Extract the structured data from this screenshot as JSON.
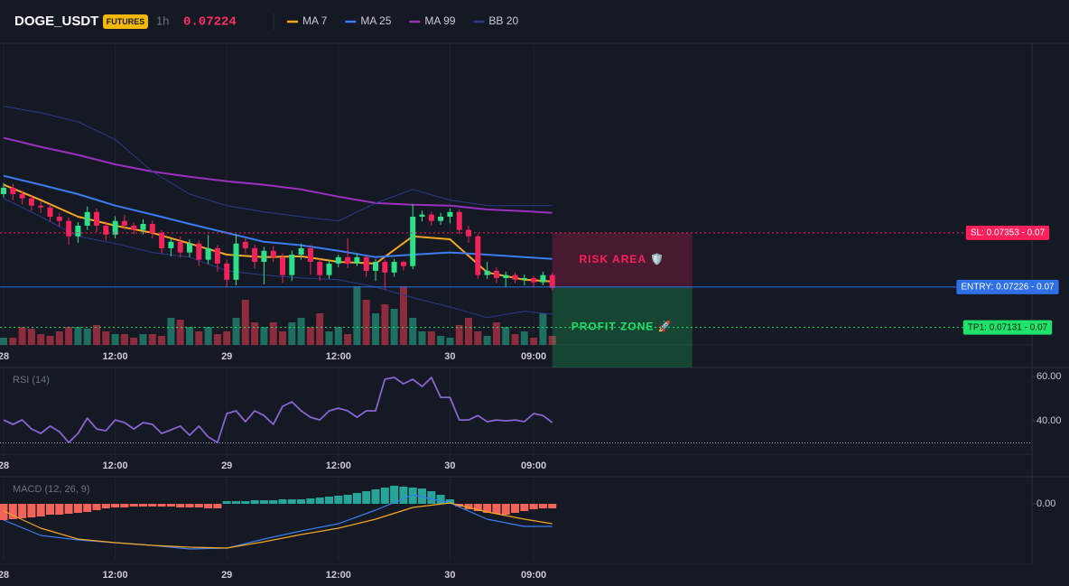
{
  "chart_data": [
    {
      "type": "candlestick",
      "symbol": "DOGE_USDT",
      "badge": "FUTURES",
      "interval": "1h",
      "price": 0.07224,
      "price_color": "#ff2e63",
      "categories": [
        "28",
        null,
        null,
        null,
        null,
        null,
        null,
        null,
        null,
        null,
        null,
        null,
        "12:00",
        null,
        null,
        null,
        null,
        null,
        null,
        null,
        null,
        null,
        null,
        null,
        "29",
        null,
        null,
        null,
        null,
        null,
        null,
        null,
        null,
        null,
        null,
        null,
        "12:00",
        null,
        null,
        null,
        null,
        null,
        null,
        null,
        null,
        null,
        null,
        null,
        "30",
        null,
        null,
        null,
        null,
        null,
        null,
        null,
        null,
        "09:00",
        null,
        null
      ],
      "open": [
        0.07444,
        0.07459,
        0.07444,
        0.07434,
        0.07417,
        0.07413,
        0.07391,
        0.07381,
        0.07345,
        0.0737,
        0.07402,
        0.0737,
        0.07349,
        0.07381,
        0.0737,
        0.0736,
        0.07374,
        0.07353,
        0.07317,
        0.07332,
        0.07307,
        0.07328,
        0.0729,
        0.07317,
        0.07281,
        0.07243,
        0.07332,
        0.07317,
        0.07285,
        0.07311,
        0.07296,
        0.07254,
        0.07302,
        0.07317,
        0.07285,
        0.07254,
        0.07281,
        0.07296,
        0.07281,
        0.07296,
        0.07264,
        0.07285,
        0.0726,
        0.07285,
        0.07275,
        0.07391,
        0.07396,
        0.07381,
        0.07391,
        0.07402,
        0.0736,
        0.07345,
        0.07254,
        0.07264,
        0.07247,
        0.07254,
        0.07243,
        0.07247,
        0.07237,
        0.07254
      ],
      "high": [
        0.0747,
        0.07468,
        0.07452,
        0.0744,
        0.07428,
        0.0742,
        0.074,
        0.0739,
        0.07378,
        0.07415,
        0.0741,
        0.0738,
        0.07392,
        0.07395,
        0.07378,
        0.07385,
        0.07382,
        0.0736,
        0.0734,
        0.07345,
        0.07338,
        0.07335,
        0.07348,
        0.07325,
        0.0729,
        0.0735,
        0.0734,
        0.07325,
        0.0732,
        0.07322,
        0.07305,
        0.07312,
        0.07328,
        0.07325,
        0.07292,
        0.0729,
        0.07302,
        0.0734,
        0.07305,
        0.073,
        0.07292,
        0.0729,
        0.07292,
        0.07288,
        0.0742,
        0.07405,
        0.07402,
        0.074,
        0.0741,
        0.07408,
        0.0737,
        0.0735,
        0.07285,
        0.07272,
        0.07262,
        0.0726,
        0.07255,
        0.07252,
        0.07262,
        0.0726
      ],
      "low": [
        0.07436,
        0.0743,
        0.0742,
        0.07405,
        0.074,
        0.0738,
        0.07368,
        0.07325,
        0.0733,
        0.0736,
        0.07355,
        0.07335,
        0.0734,
        0.0736,
        0.0735,
        0.0735,
        0.0734,
        0.07305,
        0.07298,
        0.07295,
        0.07296,
        0.07275,
        0.0728,
        0.07262,
        0.07225,
        0.0723,
        0.07305,
        0.0727,
        0.07232,
        0.07285,
        0.07235,
        0.0724,
        0.0729,
        0.07255,
        0.0724,
        0.07245,
        0.07272,
        0.0727,
        0.07275,
        0.0725,
        0.0724,
        0.0722,
        0.0725,
        0.07265,
        0.07268,
        0.0738,
        0.0737,
        0.07372,
        0.07375,
        0.0735,
        0.0733,
        0.07245,
        0.07245,
        0.07235,
        0.07225,
        0.07235,
        0.0723,
        0.07225,
        0.0723,
        0.07218
      ],
      "close": [
        0.07459,
        0.07444,
        0.07434,
        0.07417,
        0.07413,
        0.07391,
        0.07381,
        0.07345,
        0.0737,
        0.07402,
        0.0737,
        0.07349,
        0.07381,
        0.0737,
        0.0736,
        0.07374,
        0.07353,
        0.07317,
        0.07332,
        0.07307,
        0.07328,
        0.0729,
        0.07317,
        0.07281,
        0.07243,
        0.07328,
        0.07317,
        0.07285,
        0.07311,
        0.07296,
        0.07254,
        0.07302,
        0.07317,
        0.07285,
        0.07254,
        0.07281,
        0.07296,
        0.07281,
        0.07296,
        0.07264,
        0.07285,
        0.0726,
        0.07285,
        0.07275,
        0.07391,
        0.07396,
        0.07381,
        0.07391,
        0.07402,
        0.0736,
        0.07345,
        0.07254,
        0.07264,
        0.07247,
        0.07254,
        0.07243,
        0.07247,
        0.07237,
        0.07254,
        0.07224
      ],
      "up_color": "#2ee08a",
      "down_color": "#f0245a",
      "volume": [
        8,
        8,
        20,
        18,
        12,
        10,
        15,
        20,
        20,
        18,
        22,
        15,
        12,
        12,
        8,
        12,
        12,
        10,
        30,
        28,
        20,
        15,
        20,
        12,
        15,
        30,
        50,
        25,
        20,
        25,
        15,
        25,
        30,
        20,
        35,
        15,
        20,
        12,
        65,
        50,
        35,
        45,
        40,
        65,
        30,
        15,
        15,
        10,
        8,
        22,
        30,
        15,
        10,
        25,
        20,
        12,
        15,
        8,
        35,
        10
      ],
      "volume_up_color": "#1e6f60",
      "volume_down_color": "#8c2c3d",
      "volume_lim": [
        0,
        70
      ],
      "ylim": [
        0.0709,
        0.07798
      ],
      "overlays": [
        {
          "name": "MA 7",
          "color": "#f5a623",
          "x": [
            0,
            4,
            8,
            12,
            16,
            20,
            24,
            28,
            32,
            36,
            40,
            44,
            48,
            52,
            56,
            59
          ],
          "values": [
            0.07466,
            0.0743,
            0.07391,
            0.0737,
            0.07353,
            0.07328,
            0.07302,
            0.07296,
            0.07298,
            0.07285,
            0.07281,
            0.07345,
            0.07338,
            0.0726,
            0.07243,
            0.07239
          ]
        },
        {
          "name": "MA 25",
          "color": "#3b7cf0",
          "x": [
            0,
            4,
            8,
            12,
            16,
            20,
            24,
            28,
            32,
            36,
            40,
            44,
            48,
            52,
            56,
            59
          ],
          "values": [
            0.07487,
            0.07466,
            0.07444,
            0.07417,
            0.07396,
            0.07374,
            0.07353,
            0.07332,
            0.07324,
            0.07311,
            0.07296,
            0.07302,
            0.07307,
            0.07302,
            0.07296,
            0.07292
          ]
        },
        {
          "name": "MA 99",
          "color": "#9b30c0",
          "x": [
            0,
            4,
            8,
            12,
            16,
            20,
            24,
            28,
            32,
            36,
            40,
            44,
            48,
            52,
            56,
            59
          ],
          "values": [
            0.07576,
            0.07555,
            0.07536,
            0.07514,
            0.07497,
            0.07485,
            0.07474,
            0.07466,
            0.07455,
            0.07438,
            0.07423,
            0.07419,
            0.07417,
            0.07408,
            0.07404,
            0.074
          ]
        },
        {
          "name": "BB 20",
          "color": "#2a3a8c",
          "x": [
            0,
            4,
            8,
            12,
            16,
            20,
            24,
            28,
            32,
            36,
            40,
            44,
            48,
            52,
            56,
            59
          ],
          "upper": [
            0.0765,
            0.07635,
            0.07614,
            0.07572,
            0.07497,
            0.07444,
            0.07417,
            0.07402,
            0.07391,
            0.07381,
            0.07423,
            0.07455,
            0.0743,
            0.07417,
            0.07417,
            0.07417
          ],
          "lower": [
            0.07434,
            0.07391,
            0.07345,
            0.07328,
            0.07307,
            0.07296,
            0.07264,
            0.07254,
            0.07247,
            0.07243,
            0.07226,
            0.07201,
            0.07179,
            0.07154,
            0.07169,
            0.07162
          ]
        }
      ],
      "levels": [
        {
          "label": "SL: 0.07353 - 0.07",
          "value": 0.07353,
          "color": "#ff1f5a",
          "text_color": "#ffffff",
          "style": "dotted"
        },
        {
          "label": "ENTRY: 0.07226 - 0.07",
          "value": 0.07226,
          "color": "#2f6fe8",
          "text_color": "#ffffff",
          "style": "solid"
        },
        {
          "label": "TP1: 0.07131 - 0.07",
          "value": 0.07131,
          "color": "#1ee36b",
          "text_color": "#0b1a12",
          "style": "dotted"
        }
      ],
      "zones": [
        {
          "label": "RISK AREA 🛡️",
          "from": 0.07353,
          "to": 0.07226,
          "color": "#ff1f5a"
        },
        {
          "label": "PROFIT ZONE 🚀",
          "from": 0.07226,
          "to": 0.07037,
          "color": "#1ee36b"
        }
      ]
    },
    {
      "type": "line",
      "title": "RSI (14)",
      "color": "#8a63d2",
      "categories": [
        "28",
        null,
        null,
        null,
        null,
        null,
        null,
        null,
        null,
        null,
        null,
        null,
        "12:00",
        null,
        null,
        null,
        null,
        null,
        null,
        null,
        null,
        null,
        null,
        null,
        "29",
        null,
        null,
        null,
        null,
        null,
        null,
        null,
        null,
        null,
        null,
        null,
        "12:00",
        null,
        null,
        null,
        null,
        null,
        null,
        null,
        null,
        null,
        null,
        null,
        "30",
        null,
        null,
        null,
        null,
        null,
        null,
        null,
        null,
        "09:00",
        null,
        null
      ],
      "values": [
        40.4,
        38.4,
        40.4,
        36.3,
        34.3,
        37.6,
        35.1,
        30.2,
        34.3,
        41.2,
        36.3,
        35.5,
        40.4,
        39.2,
        36.3,
        39.2,
        38.4,
        34.3,
        35.9,
        37.6,
        33.5,
        37.6,
        32.7,
        30.2,
        43.3,
        44.5,
        39.6,
        44.5,
        42.4,
        38.4,
        46.5,
        48.6,
        44.5,
        41.6,
        40.4,
        44.5,
        45.7,
        44.5,
        41.6,
        44.5,
        44.5,
        58.8,
        59.6,
        56.7,
        58.8,
        55.5,
        59.6,
        50.6,
        50.6,
        40.4,
        40.4,
        42.4,
        39.6,
        40.4,
        40,
        40.4,
        39.6,
        43.3,
        42.4,
        39.2
      ],
      "ylim": [
        18.8,
        63.7
      ],
      "yticks": [
        {
          "value": 60,
          "label": "60.00"
        },
        {
          "value": 40,
          "label": "40.00"
        }
      ],
      "level": 30
    },
    {
      "type": "macd",
      "title": "MACD (12, 26, 9)",
      "categories": [
        "28",
        null,
        null,
        null,
        null,
        null,
        null,
        null,
        null,
        null,
        null,
        null,
        "12:00",
        null,
        null,
        null,
        null,
        null,
        null,
        null,
        null,
        null,
        null,
        null,
        "29",
        null,
        null,
        null,
        null,
        null,
        null,
        null,
        null,
        null,
        null,
        null,
        "12:00",
        null,
        null,
        null,
        null,
        null,
        null,
        null,
        null,
        null,
        null,
        null,
        "30",
        null,
        null,
        null,
        null,
        null,
        null,
        null,
        null,
        "09:00",
        null,
        null
      ],
      "histogram": [
        -0.00018,
        -0.00017,
        -0.00016,
        -0.00015,
        -0.00014,
        -0.00012,
        -0.00012,
        -0.00011,
        -0.0001,
        -9e-05,
        -7e-05,
        -5e-05,
        -4e-05,
        -4e-05,
        -3e-05,
        -3e-05,
        -3e-05,
        -3e-05,
        -3e-05,
        -4e-05,
        -4e-05,
        -4e-05,
        -5e-05,
        -5e-05,
        3e-05,
        3e-05,
        3e-05,
        4e-05,
        4e-05,
        4e-05,
        5e-05,
        5e-05,
        5e-05,
        6e-05,
        7e-05,
        8e-05,
        9e-05,
        0.0001,
        0.00012,
        0.00014,
        0.00016,
        0.00018,
        0.0002,
        0.00019,
        0.00018,
        0.00017,
        0.00014,
        0.0001,
        5e-05,
        -3e-05,
        -6e-05,
        -8e-05,
        -0.0001,
        -0.00011,
        -0.00012,
        -0.0001,
        -8e-05,
        -6e-05,
        -5e-05,
        -5e-05
      ],
      "positive_color": "#26a69a",
      "negative_color": "#f2645a",
      "macd": {
        "color": "#3b7cf0",
        "x": [
          0,
          4,
          8,
          12,
          16,
          20,
          24,
          28,
          32,
          36,
          40,
          44,
          48,
          52,
          56,
          59
        ],
        "values": [
          -0.00018,
          -0.00035,
          -0.0004,
          -0.00043,
          -0.00046,
          -0.0005,
          -0.00049,
          -0.00039,
          -0.0003,
          -0.00022,
          -7e-05,
          0.0001,
          1e-05,
          -0.00017,
          -0.00025,
          -0.00025
        ]
      },
      "signal": {
        "color": "#f5a623",
        "x": [
          0,
          4,
          8,
          12,
          16,
          20,
          24,
          28,
          32,
          36,
          40,
          44,
          48,
          52,
          56,
          59
        ],
        "values": [
          -8e-05,
          -0.00027,
          -0.00039,
          -0.00043,
          -0.00046,
          -0.00048,
          -0.00049,
          -0.00042,
          -0.00034,
          -0.00027,
          -0.00017,
          -4e-05,
          1e-05,
          -9e-05,
          -0.00017,
          -0.00022
        ]
      },
      "ylim": [
        -0.00062,
        0.00028
      ],
      "yticks": [
        {
          "value": 0,
          "label": "0.00"
        }
      ]
    }
  ]
}
